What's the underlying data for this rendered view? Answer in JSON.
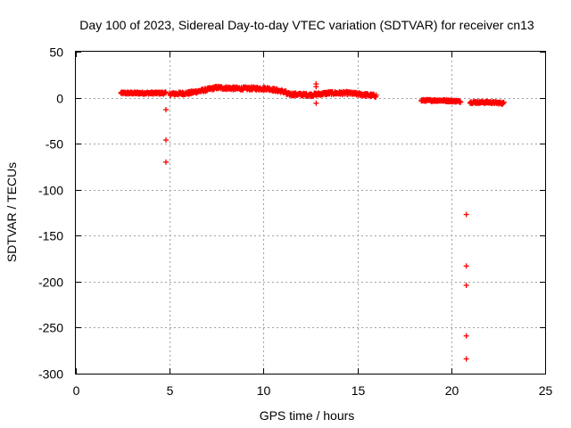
{
  "chart_data": {
    "type": "scatter",
    "title": "Day 100 of 2023, Sidereal Day-to-day VTEC variation (SDTVAR) for receiver cn13",
    "xlabel": "GPS time / hours",
    "ylabel": "SDTVAR / TECUs",
    "xlim": [
      0,
      25
    ],
    "ylim": [
      -300,
      50
    ],
    "xticks": [
      0,
      5,
      10,
      15,
      20,
      25
    ],
    "yticks": [
      50,
      0,
      -50,
      -100,
      -150,
      -200,
      -250,
      -300
    ],
    "grid": true,
    "marker": "+",
    "color": "#ff0000",
    "series": [
      {
        "name": "SDTVAR",
        "segments": [
          {
            "x_start": 2.4,
            "x_end": 4.8,
            "step": 0.02,
            "y": [
              [
                2.4,
                5
              ],
              [
                4.8,
                5
              ]
            ],
            "jitter": 1.2
          },
          {
            "x_start": 5.0,
            "x_end": 11.2,
            "step": 0.02,
            "y": [
              [
                5.0,
                4
              ],
              [
                6.0,
                5
              ],
              [
                6.8,
                8
              ],
              [
                7.5,
                11
              ],
              [
                8.5,
                10
              ],
              [
                9.5,
                10
              ],
              [
                10.2,
                10
              ],
              [
                11.2,
                6
              ]
            ],
            "jitter": 1.6
          },
          {
            "x_start": 11.2,
            "x_end": 16.0,
            "step": 0.02,
            "y": [
              [
                11.2,
                4
              ],
              [
                12.5,
                3
              ],
              [
                13.5,
                5
              ],
              [
                14.5,
                5
              ],
              [
                15.5,
                3
              ],
              [
                16.0,
                2
              ]
            ],
            "jitter": 1.6
          },
          {
            "x_start": 18.4,
            "x_end": 20.5,
            "step": 0.02,
            "y": [
              [
                18.4,
                -3
              ],
              [
                19.5,
                -3
              ],
              [
                20.5,
                -4
              ]
            ],
            "jitter": 1.0
          },
          {
            "x_start": 21.0,
            "x_end": 22.8,
            "step": 0.02,
            "y": [
              [
                21.0,
                -5
              ],
              [
                22.0,
                -5
              ],
              [
                22.8,
                -6
              ]
            ],
            "jitter": 1.2
          }
        ],
        "outliers": [
          {
            "x": 4.8,
            "y": -13
          },
          {
            "x": 4.8,
            "y": -46
          },
          {
            "x": 4.8,
            "y": -70
          },
          {
            "x": 12.8,
            "y": 15
          },
          {
            "x": 12.8,
            "y": 12
          },
          {
            "x": 12.8,
            "y": -6
          },
          {
            "x": 20.8,
            "y": -127
          },
          {
            "x": 20.8,
            "y": -183
          },
          {
            "x": 20.8,
            "y": -204
          },
          {
            "x": 20.8,
            "y": -259
          },
          {
            "x": 20.8,
            "y": -284
          }
        ]
      }
    ]
  }
}
